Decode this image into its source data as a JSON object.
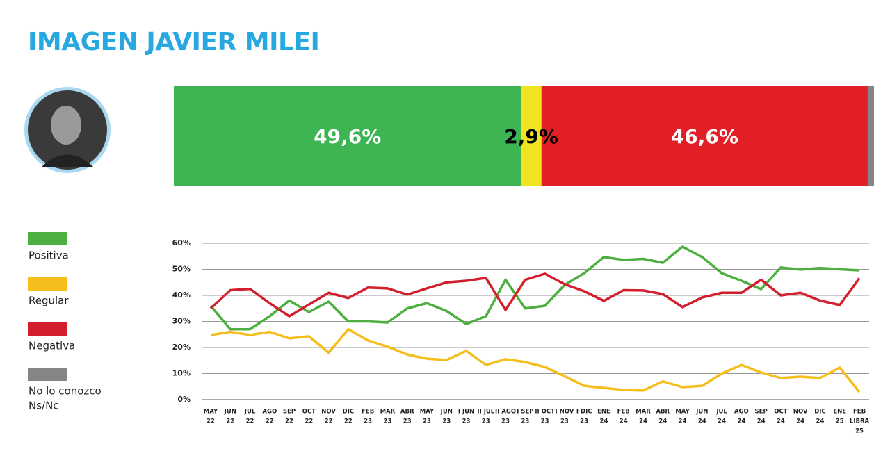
{
  "title": "IMAGEN JAVIER MILEI",
  "chart_data": [
    {
      "type": "stacked_bar",
      "xlim": [
        0,
        100
      ],
      "series": [
        {
          "color": "#3db552",
          "label_color": "#ffffff",
          "values": [
            49.6
          ],
          "value_labels": [
            "49,6%"
          ]
        },
        {
          "color": "#efe41f",
          "label_color": "#000000",
          "values": [
            2.9
          ],
          "value_labels": [
            "2,9%"
          ]
        },
        {
          "color": "#e21e26",
          "label_color": "#ffffff",
          "values": [
            46.6
          ],
          "value_labels": [
            "46,6%"
          ]
        },
        {
          "color": "#858585",
          "values": [
            0.9
          ]
        }
      ]
    },
    {
      "type": "line",
      "ylim": [
        0,
        60
      ],
      "grid": true,
      "yticks": [
        {
          "value": 0,
          "label": "0%"
        },
        {
          "value": 10,
          "label": "10%"
        },
        {
          "value": 20,
          "label": "20%"
        },
        {
          "value": 30,
          "label": "30%"
        },
        {
          "value": 40,
          "label": "40%"
        },
        {
          "value": 50,
          "label": "50%"
        },
        {
          "value": 60,
          "label": "60%"
        }
      ],
      "categories": [
        [
          "MAY",
          "22"
        ],
        [
          "JUN",
          "22"
        ],
        [
          "JUL",
          "22"
        ],
        [
          "AGO",
          "22"
        ],
        [
          "SEP",
          "22"
        ],
        [
          "OCT",
          "22"
        ],
        [
          "NOV",
          "22"
        ],
        [
          "DIC",
          "22"
        ],
        [
          "FEB",
          "23"
        ],
        [
          "MAR",
          "23"
        ],
        [
          "ABR",
          "23"
        ],
        [
          "MAY",
          "23"
        ],
        [
          "JUN",
          "23"
        ],
        [
          "I JUN",
          "23"
        ],
        [
          "II JUL",
          "23"
        ],
        [
          "II AGO",
          "23"
        ],
        [
          "I SEP",
          "23"
        ],
        [
          "II OCT",
          "23"
        ],
        [
          "I NOV",
          "23"
        ],
        [
          "I DIC",
          "23"
        ],
        [
          "ENE",
          "24"
        ],
        [
          "FEB",
          "24"
        ],
        [
          "MAR",
          "24"
        ],
        [
          "ABR",
          "24"
        ],
        [
          "MAY",
          "24"
        ],
        [
          "JUN",
          "24"
        ],
        [
          "JUL",
          "24"
        ],
        [
          "AGO",
          "24"
        ],
        [
          "SEP",
          "24"
        ],
        [
          "OCT",
          "24"
        ],
        [
          "NOV",
          "24"
        ],
        [
          "DIC",
          "24"
        ],
        [
          "ENE",
          "25"
        ],
        [
          "FEB",
          "LIBRA",
          "25"
        ]
      ],
      "series": [
        {
          "name": [
            "Positiva"
          ],
          "color": "#4caf3f",
          "values": [
            36,
            27,
            27,
            32,
            38,
            33.6,
            37.6,
            30,
            30,
            29.6,
            35,
            37,
            34,
            29,
            32,
            46,
            35,
            36,
            44,
            48.5,
            54.7,
            53.6,
            54,
            52.5,
            58.7,
            54.7,
            48.5,
            45.6,
            42.4,
            50.7,
            49.9,
            50.5,
            50,
            49.6
          ]
        },
        {
          "name": [
            "Regular"
          ],
          "color": "#f5be1c",
          "values": [
            24.8,
            26,
            24.8,
            26,
            23.5,
            24.3,
            18,
            27,
            22.7,
            20.3,
            17.3,
            15.7,
            15.2,
            18.7,
            13.3,
            15.5,
            14.4,
            12.5,
            9,
            5.3,
            4.5,
            3.7,
            3.5,
            7,
            4.8,
            5.3,
            10,
            13.3,
            10.4,
            8.3,
            8.8,
            8.3,
            12.3,
            2.9
          ]
        },
        {
          "name": [
            "Negativa"
          ],
          "color": "#d21f2b",
          "values": [
            35,
            42,
            42.5,
            37,
            32,
            36.5,
            41,
            39,
            43,
            42.7,
            40.3,
            42.7,
            45,
            45.6,
            46.7,
            34.4,
            46,
            48.3,
            44.3,
            41.6,
            37.9,
            42,
            41.9,
            40.5,
            35.5,
            39.2,
            41,
            41,
            46,
            40,
            41,
            38,
            36.3,
            46.6
          ]
        }
      ],
      "legend_extra": {
        "name": [
          "No lo conozco",
          "Ns/Nc"
        ],
        "color": "#858585"
      }
    }
  ]
}
